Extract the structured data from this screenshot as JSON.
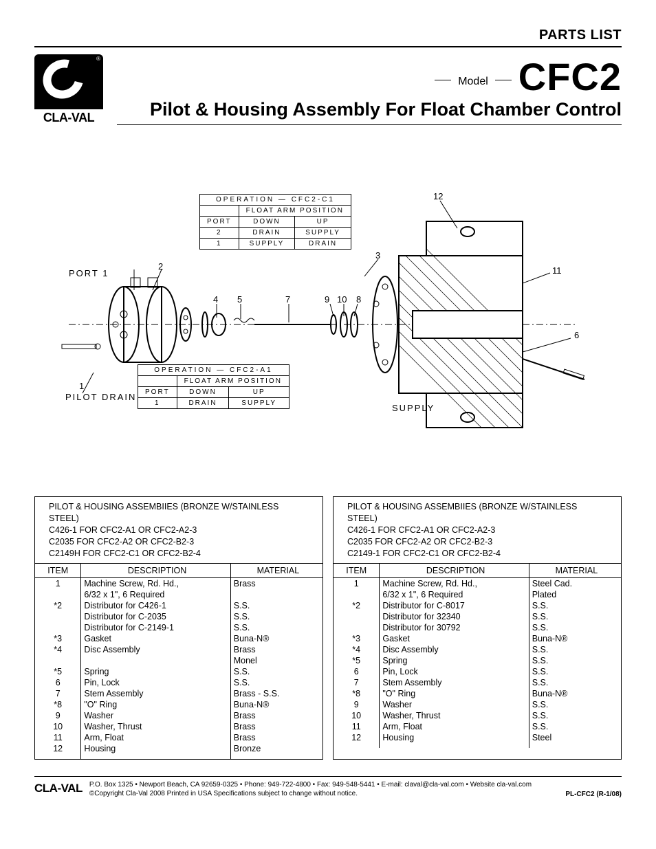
{
  "top_right": "PARTS LIST",
  "brand": "CLA-VAL",
  "model_label": "Model",
  "model_code": "CFC2",
  "subtitle": "Pilot & Housing  Assembly For Float Chamber Control",
  "diagram": {
    "port1": "PORT 1",
    "pilot_drain": "PILOT DRAIN",
    "supply": "SUPPLY",
    "leaders": [
      "1",
      "2",
      "3",
      "4",
      "5",
      "6",
      "7",
      "8",
      "9",
      "10",
      "11",
      "12"
    ],
    "op1": {
      "title": "OPERATION — CFC2-C1",
      "h1": "FLOAT  ARM  POSITION",
      "cols": [
        "PORT",
        "DOWN",
        "UP"
      ],
      "rows": [
        [
          "2",
          "DRAIN",
          "SUPPLY"
        ],
        [
          "1",
          "SUPPLY",
          "DRAIN"
        ]
      ]
    },
    "op2": {
      "title": "OPERATION — CFC2-A1",
      "h1": "FLOAT  ARM  POSITION",
      "cols": [
        "PORT",
        "DOWN",
        "UP"
      ],
      "rows": [
        [
          "1",
          "DRAIN",
          "SUPPLY"
        ]
      ]
    }
  },
  "tables_header": {
    "line1": "PILOT & HOUSING ASSEMBIIES (BRONZE W/STAINLESS STEEL)",
    "left": [
      "C426-1 FOR CFC2-A1 OR CFC2-A2-3",
      "C2035 FOR CFC2-A2 OR CFC2-B2-3",
      "C2149H FOR CFC2-C1 OR CFC2-B2-4"
    ],
    "right": [
      "C426-1 FOR CFC2-A1 OR CFC2-A2-3",
      "C2035 FOR CFC2-A2 OR CFC2-B2-3",
      "C2149-1 FOR CFC2-C1 OR CFC2-B2-4"
    ]
  },
  "columns": [
    "ITEM",
    "DESCRIPTION",
    "MATERIAL"
  ],
  "left_rows": [
    [
      "1",
      "Machine Screw, Rd. Hd.,",
      "Brass"
    ],
    [
      "",
      "6/32 x 1\", 6 Required",
      ""
    ],
    [
      "*2",
      "Distributor for C426-1",
      "S.S."
    ],
    [
      "",
      "Distributor for C-2035",
      "S.S."
    ],
    [
      "",
      "Distributor for C-2149-1",
      "S.S."
    ],
    [
      "*3",
      "Gasket",
      "Buna-N®"
    ],
    [
      "*4",
      "Disc Assembly",
      "Brass"
    ],
    [
      "",
      "",
      "Monel"
    ],
    [
      "*5",
      "Spring",
      "S.S."
    ],
    [
      "6",
      "Pin, Lock",
      "S.S."
    ],
    [
      "7",
      "Stem Assembly",
      "Brass - S.S."
    ],
    [
      "*8",
      "\"O\" Ring",
      "Buna-N®"
    ],
    [
      "9",
      "Washer",
      "Brass"
    ],
    [
      "10",
      "Washer, Thrust",
      "Brass"
    ],
    [
      "11",
      "Arm, Float",
      "Brass"
    ],
    [
      "12",
      "Housing",
      "Bronze"
    ]
  ],
  "right_rows": [
    [
      "1",
      "Machine Screw, Rd. Hd.,",
      "Steel Cad."
    ],
    [
      "",
      "6/32 x 1\", 6 Required",
      "Plated"
    ],
    [
      "*2",
      "Distributor for C-8017",
      "S.S."
    ],
    [
      "",
      "Distributor for 32340",
      "S.S."
    ],
    [
      "",
      "Distributor for 30792",
      "S.S."
    ],
    [
      "*3",
      "Gasket",
      "Buna-N®"
    ],
    [
      "*4",
      "Disc Assembly",
      "S.S."
    ],
    [
      "*5",
      "Spring",
      "S.S."
    ],
    [
      "6",
      "Pin, Lock",
      "S.S."
    ],
    [
      "7",
      "Stem Assembly",
      "S.S."
    ],
    [
      "*8",
      "\"O\" Ring",
      "Buna-N®"
    ],
    [
      "9",
      "Washer",
      "S.S."
    ],
    [
      "10",
      "Washer, Thrust",
      "S.S."
    ],
    [
      "11",
      "Arm, Float",
      "S.S."
    ],
    [
      "12",
      "Housing",
      "Steel"
    ]
  ],
  "footer": {
    "brand": "CLA-VAL",
    "line1": "P.O. Box 1325 • Newport Beach, CA 92659-0325 • Phone: 949-722-4800 • Fax: 949-548-5441 • E-mail: claval@cla-val.com • Website cla-val.com",
    "line2": "©Copyright Cla-Val 2008   Printed in USA   Specifications subject to change without notice.",
    "doc": "PL-CFC2 (R-1/08)"
  }
}
